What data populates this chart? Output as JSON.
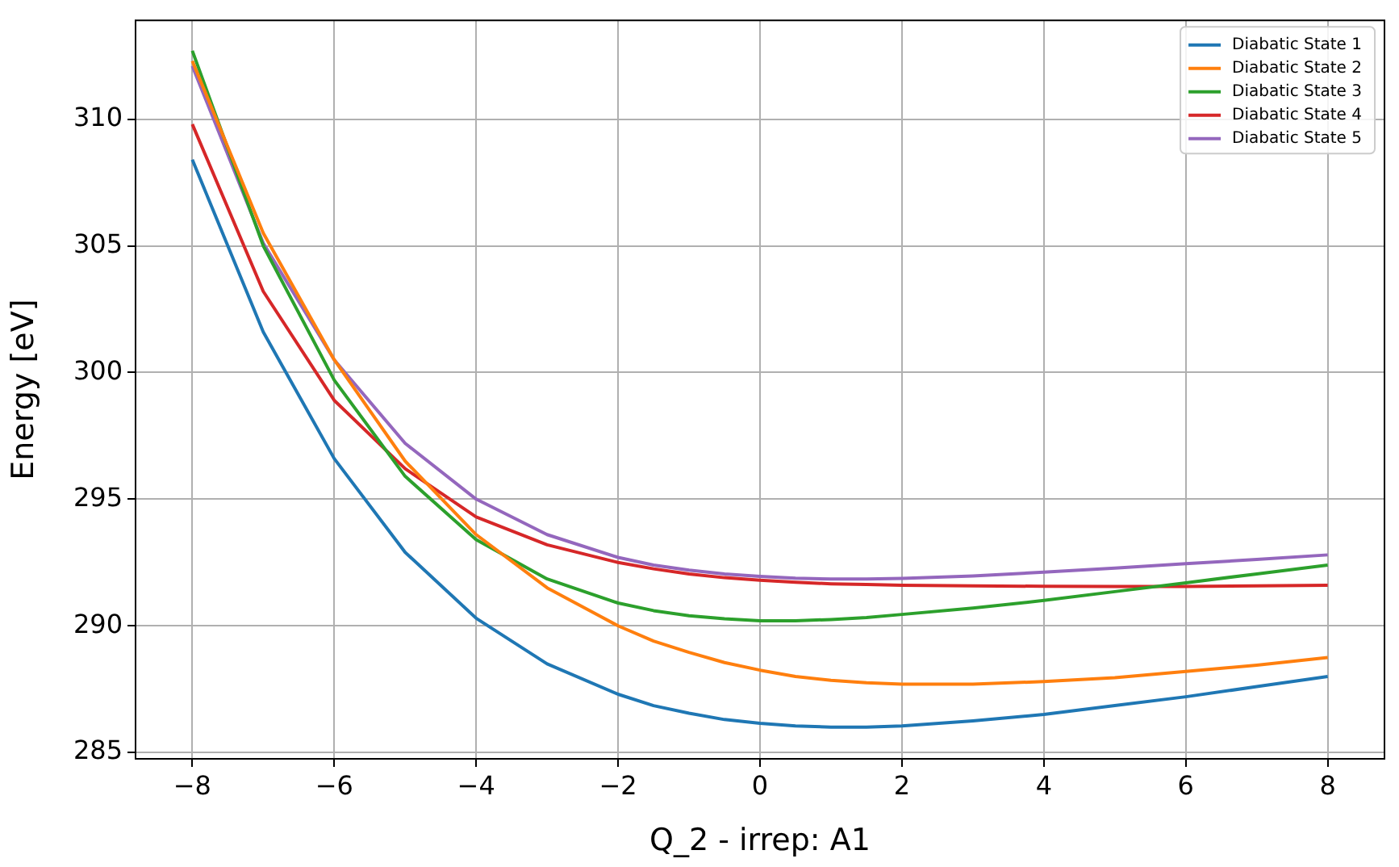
{
  "chart_data": {
    "type": "line",
    "xlabel": "Q_2 - irrep: A1",
    "ylabel": "Energy [eV]",
    "x": [
      -8,
      -7,
      -6,
      -5,
      -4,
      -3,
      -2,
      -1.5,
      -1,
      -0.5,
      0,
      0.5,
      1,
      1.5,
      2,
      3,
      4,
      5,
      6,
      7,
      8
    ],
    "series": [
      {
        "name": "Diabatic State 1",
        "color": "#1f77b4",
        "values": [
          308.4,
          301.6,
          296.6,
          292.9,
          290.3,
          288.5,
          287.3,
          286.85,
          286.55,
          286.3,
          286.15,
          286.05,
          286.0,
          286.0,
          286.05,
          286.25,
          286.5,
          286.85,
          287.2,
          287.6,
          288.0
        ]
      },
      {
        "name": "Diabatic State 2",
        "color": "#ff7f0e",
        "values": [
          312.3,
          305.5,
          300.5,
          296.5,
          293.6,
          291.5,
          290.0,
          289.4,
          288.95,
          288.55,
          288.25,
          288.0,
          287.85,
          287.75,
          287.7,
          287.7,
          287.8,
          287.95,
          288.2,
          288.45,
          288.75
        ]
      },
      {
        "name": "Diabatic State 3",
        "color": "#2ca02c",
        "values": [
          312.7,
          305.0,
          299.7,
          295.9,
          293.4,
          291.85,
          290.9,
          290.6,
          290.4,
          290.28,
          290.2,
          290.2,
          290.25,
          290.33,
          290.45,
          290.7,
          291.0,
          291.35,
          291.7,
          292.05,
          292.4
        ]
      },
      {
        "name": "Diabatic State 4",
        "color": "#d62728",
        "values": [
          309.8,
          303.2,
          298.9,
          296.2,
          294.3,
          293.2,
          292.5,
          292.25,
          292.05,
          291.9,
          291.8,
          291.72,
          291.66,
          291.63,
          291.6,
          291.58,
          291.56,
          291.55,
          291.55,
          291.58,
          291.6
        ]
      },
      {
        "name": "Diabatic State 5",
        "color": "#9467bd",
        "values": [
          312.1,
          305.1,
          300.5,
          297.2,
          295.0,
          293.6,
          292.7,
          292.4,
          292.2,
          292.05,
          291.95,
          291.88,
          291.85,
          291.85,
          291.87,
          291.97,
          292.12,
          292.28,
          292.45,
          292.62,
          292.8
        ]
      }
    ],
    "xlim": [
      -8.8,
      8.8
    ],
    "xticks": [
      -8,
      -6,
      -4,
      -2,
      0,
      2,
      4,
      6,
      8
    ],
    "ylim": [
      284.75,
      313.9
    ],
    "yticks": [
      285,
      290,
      295,
      300,
      305,
      310
    ],
    "grid": true,
    "legend": "top right",
    "marker": "none",
    "line_style": "solid"
  }
}
